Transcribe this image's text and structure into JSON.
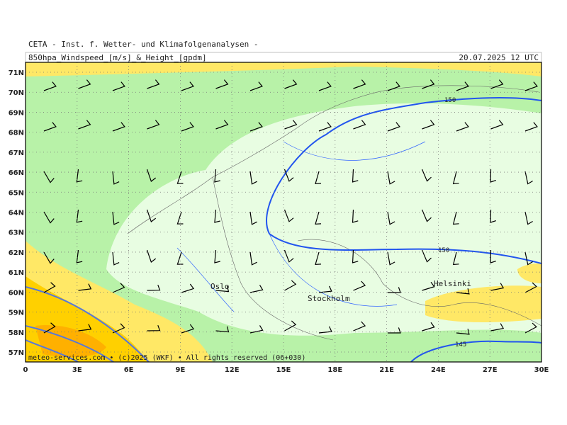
{
  "header": {
    "source": "CETA - Inst. f. Wetter- und Klimafolgenanalysen -",
    "product": "850hpa_Windspeed_[m/s]_&_Height_[gpdm]",
    "valid": "20.07.2025 12 UTC"
  },
  "axes": {
    "lat_labels": [
      "71N",
      "70N",
      "69N",
      "68N",
      "67N",
      "66N",
      "65N",
      "64N",
      "63N",
      "62N",
      "61N",
      "60N",
      "59N",
      "58N",
      "57N"
    ],
    "lon_labels": [
      "0",
      "3E",
      "6E",
      "9E",
      "12E",
      "15E",
      "18E",
      "21E",
      "24E",
      "27E",
      "30E"
    ]
  },
  "map": {
    "cities": [
      "Oslo",
      "Stockholm",
      "Helsinki"
    ],
    "contour_labels": [
      "150",
      "150",
      "145"
    ]
  },
  "footer": "meteo-services.com • (c)2025 (WKF) • All rights reserved (06+030)"
}
